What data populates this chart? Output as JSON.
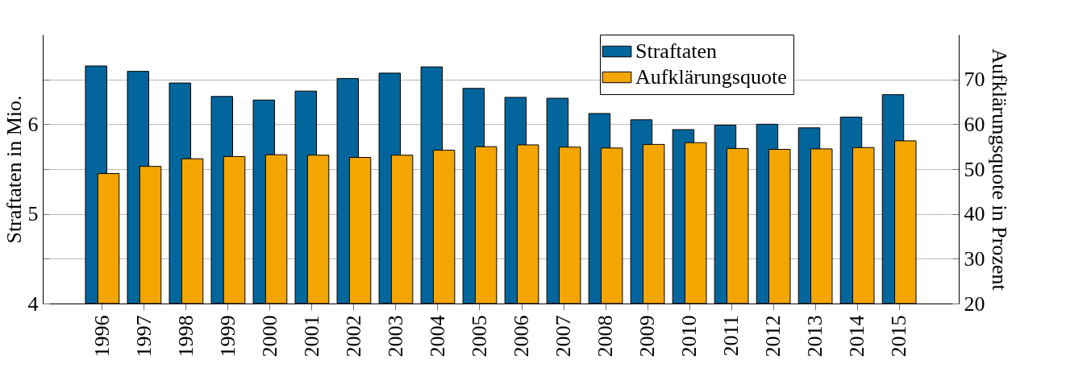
{
  "chart_data": {
    "type": "bar",
    "ylabel": "Straftaten in Mio.",
    "y2label": "Aufklärungsquote in Prozent",
    "categories": [
      "1996",
      "1997",
      "1998",
      "1999",
      "2000",
      "2001",
      "2002",
      "2003",
      "2004",
      "2005",
      "2006",
      "2007",
      "2008",
      "2009",
      "2010",
      "2011",
      "2012",
      "2013",
      "2014",
      "2015"
    ],
    "series": [
      {
        "name": "Straftaten",
        "color": "#02669c",
        "values": [
          6.65,
          6.59,
          6.46,
          6.31,
          6.27,
          6.37,
          6.51,
          6.57,
          6.64,
          6.4,
          6.3,
          6.29,
          6.12,
          6.05,
          5.94,
          5.99,
          6.0,
          5.96,
          6.08,
          6.33
        ]
      },
      {
        "name": "Aufklärungsquote",
        "color": "#f3a500",
        "axis": "y2",
        "values": [
          49.0,
          50.6,
          52.3,
          52.8,
          53.2,
          53.1,
          52.6,
          53.1,
          54.2,
          55.0,
          55.4,
          54.9,
          54.7,
          55.5,
          55.9,
          54.6,
          54.4,
          54.5,
          54.8,
          56.3
        ]
      }
    ],
    "ylim": [
      4,
      7
    ],
    "yticks": [
      4,
      {
        "value": 4.5,
        "label": null
      },
      5,
      {
        "value": 5.5,
        "label": null
      },
      6,
      {
        "value": 6.5,
        "label": null
      }
    ],
    "y2lim": [
      20,
      80
    ],
    "y2ticks": [
      20,
      30,
      40,
      50,
      60,
      70
    ],
    "grid": "y",
    "legend": "top right"
  }
}
